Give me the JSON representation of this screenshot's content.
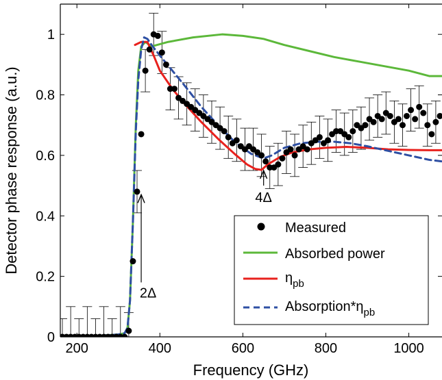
{
  "chart_data": {
    "type": "line",
    "xlabel": "Frequency (GHz)",
    "ylabel": "Detector phase response (a.u.)",
    "xlim": [
      160,
      1080
    ],
    "ylim": [
      0,
      1.1
    ],
    "xticks": [
      200,
      400,
      600,
      800,
      1000
    ],
    "yticks": [
      0,
      0.2,
      0.4,
      0.6,
      0.8,
      1
    ],
    "ytick_labels": [
      "0",
      "0.2",
      "0.4",
      "0.6",
      "0.8",
      "1"
    ],
    "legend": {
      "position": "bottom-right",
      "entries": [
        {
          "label": "Measured",
          "color": "#000000",
          "marker": "dot"
        },
        {
          "label": "Absorbed power",
          "color": "#5cb83a",
          "style": "solid"
        },
        {
          "label": "η",
          "sub": "pb",
          "color": "#e8211d",
          "style": "solid"
        },
        {
          "label": "Absorption*η",
          "sub": "pb",
          "color": "#2e4fa3",
          "style": "dashed"
        }
      ]
    },
    "annotations": [
      {
        "text": "2Δ",
        "x": 355,
        "y_from": 0.18,
        "y_to": 0.47
      },
      {
        "text": "4Δ",
        "x": 650,
        "y_from": 0.5,
        "y_to": 0.55
      }
    ],
    "series": [
      {
        "name": "Absorbed power",
        "color": "#5cb83a",
        "dashed": false,
        "x": [
          165,
          250,
          300,
          315,
          322,
          328,
          335,
          342,
          348,
          355,
          365,
          380,
          420,
          480,
          550,
          600,
          650,
          700,
          760,
          820,
          880,
          940,
          1000,
          1050,
          1080
        ],
        "y": [
          0.0,
          0.003,
          0.008,
          0.012,
          0.03,
          0.12,
          0.38,
          0.7,
          0.88,
          0.96,
          0.975,
          0.96,
          0.975,
          0.99,
          1.0,
          0.995,
          0.985,
          0.965,
          0.945,
          0.925,
          0.91,
          0.895,
          0.88,
          0.862,
          0.862
        ]
      },
      {
        "name": "η_pb",
        "color": "#e8211d",
        "dashed": false,
        "x": [
          340,
          355,
          370,
          385,
          400,
          430,
          460,
          500,
          540,
          580,
          610,
          630,
          645,
          660,
          690,
          720,
          760,
          800,
          850,
          900,
          950,
          1000,
          1050,
          1080
        ],
        "y": [
          0.965,
          0.975,
          0.975,
          0.93,
          0.88,
          0.82,
          0.77,
          0.71,
          0.655,
          0.605,
          0.57,
          0.555,
          0.552,
          0.57,
          0.595,
          0.61,
          0.62,
          0.625,
          0.628,
          0.625,
          0.62,
          0.618,
          0.617,
          0.617
        ]
      },
      {
        "name": "Absorption*η_pb",
        "color": "#2e4fa3",
        "dashed": true,
        "x": [
          165,
          250,
          300,
          315,
          322,
          328,
          335,
          342,
          348,
          355,
          362,
          370,
          380,
          400,
          430,
          460,
          500,
          540,
          580,
          620,
          650,
          670,
          700,
          740,
          780,
          820,
          860,
          900,
          950,
          1000,
          1050,
          1080
        ],
        "y": [
          0.0,
          0.003,
          0.008,
          0.012,
          0.03,
          0.12,
          0.38,
          0.68,
          0.85,
          0.95,
          0.99,
          0.985,
          0.965,
          0.93,
          0.88,
          0.83,
          0.76,
          0.7,
          0.645,
          0.605,
          0.59,
          0.6,
          0.625,
          0.64,
          0.645,
          0.645,
          0.64,
          0.63,
          0.615,
          0.6,
          0.585,
          0.58
        ]
      }
    ],
    "measured": {
      "name": "Measured",
      "color": "#000000",
      "x": [
        165,
        175,
        185,
        195,
        205,
        215,
        225,
        235,
        245,
        255,
        265,
        275,
        285,
        295,
        305,
        315,
        325,
        335,
        345,
        355,
        365,
        375,
        385,
        395,
        405,
        415,
        425,
        435,
        445,
        455,
        465,
        475,
        485,
        495,
        505,
        515,
        525,
        535,
        545,
        555,
        565,
        575,
        585,
        595,
        605,
        615,
        625,
        635,
        645,
        655,
        665,
        675,
        685,
        695,
        705,
        715,
        725,
        735,
        745,
        755,
        765,
        775,
        785,
        795,
        805,
        815,
        825,
        835,
        845,
        855,
        865,
        875,
        885,
        895,
        905,
        915,
        925,
        935,
        945,
        955,
        965,
        975,
        985,
        995,
        1005,
        1015,
        1025,
        1035,
        1045,
        1055,
        1065,
        1075
      ],
      "y": [
        0.0,
        0.0,
        0.0,
        0.0,
        0.0,
        0.0,
        0.0,
        0.0,
        0.0,
        0.0,
        0.0,
        0.0,
        0.0,
        0.0,
        0.0,
        0.0,
        0.02,
        0.25,
        0.48,
        0.67,
        0.88,
        0.95,
        1.0,
        0.995,
        0.94,
        0.9,
        0.82,
        0.82,
        0.79,
        0.78,
        0.77,
        0.76,
        0.75,
        0.74,
        0.73,
        0.72,
        0.71,
        0.7,
        0.69,
        0.68,
        0.66,
        0.64,
        0.65,
        0.63,
        0.62,
        0.63,
        0.62,
        0.61,
        0.6,
        0.58,
        0.56,
        0.56,
        0.57,
        0.59,
        0.61,
        0.62,
        0.6,
        0.62,
        0.63,
        0.62,
        0.64,
        0.65,
        0.66,
        0.64,
        0.65,
        0.67,
        0.68,
        0.68,
        0.67,
        0.66,
        0.68,
        0.7,
        0.69,
        0.7,
        0.72,
        0.71,
        0.73,
        0.72,
        0.74,
        0.73,
        0.71,
        0.72,
        0.7,
        0.73,
        0.75,
        0.72,
        0.76,
        0.74,
        0.7,
        0.67,
        0.71,
        0.73
      ]
    }
  }
}
